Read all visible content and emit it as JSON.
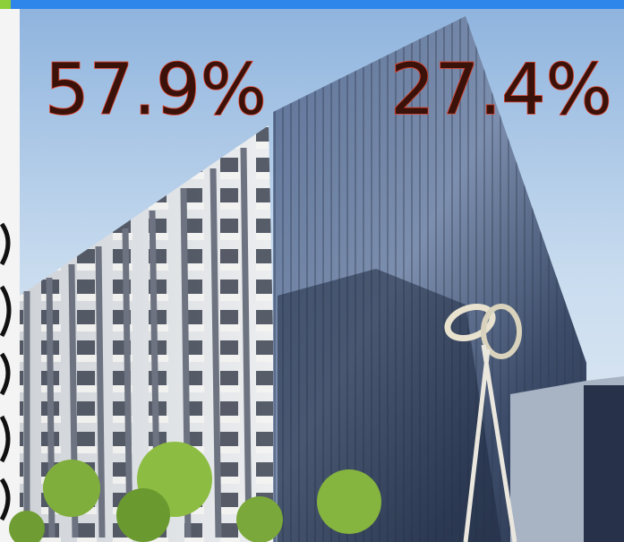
{
  "labels": [
    "57.9%",
    "27.4%"
  ]
}
